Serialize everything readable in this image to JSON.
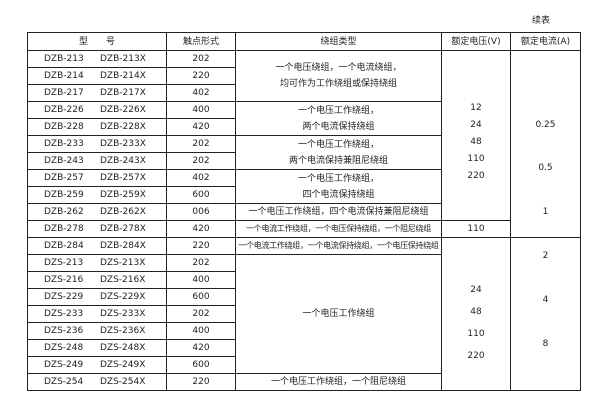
{
  "continued_label": "续表",
  "headers": [
    "型　　号",
    "触点形式",
    "绕组类型",
    "额定电压(V)",
    "额定电流(A)"
  ],
  "rows": [
    {
      "model": "DZB-213",
      "model_x": "DZB-213X",
      "contact": "202"
    },
    {
      "model": "DZB-214",
      "model_x": "DZB-214X",
      "contact": "220"
    },
    {
      "model": "DZB-217",
      "model_x": "DZB-217X",
      "contact": "402"
    },
    {
      "model": "DZB-226",
      "model_x": "DZB-226X",
      "contact": "400"
    },
    {
      "model": "DZB-228",
      "model_x": "DZB-228X",
      "contact": "420"
    },
    {
      "model": "DZB-233",
      "model_x": "DZB-233X",
      "contact": "202"
    },
    {
      "model": "DZB-243",
      "model_x": "DZB-243X",
      "contact": "202"
    },
    {
      "model": "DZB-257",
      "model_x": "DZB-257X",
      "contact": "402"
    },
    {
      "model": "DZB-259",
      "model_x": "DZB-259X",
      "contact": "600"
    },
    {
      "model": "DZB-262",
      "model_x": "DZB-262X",
      "contact": "006"
    },
    {
      "model": "DZB-278",
      "model_x": "DZB-278X",
      "contact": "420"
    },
    {
      "model": "DZB-284",
      "model_x": "DZB-284X",
      "contact": "220"
    },
    {
      "model": "DZS-213",
      "model_x": "DZS-213X",
      "contact": "202"
    },
    {
      "model": "DZS-216",
      "model_x": "DZS-216X",
      "contact": "400"
    },
    {
      "model": "DZS-229",
      "model_x": "DZS-229X",
      "contact": "600"
    },
    {
      "model": "DZS-233",
      "model_x": "DZS-233X",
      "contact": "202"
    },
    {
      "model": "DZS-236",
      "model_x": "DZS-236X",
      "contact": "400"
    },
    {
      "model": "DZS-248",
      "model_x": "DZS-248X",
      "contact": "420"
    },
    {
      "model": "DZS-249",
      "model_x": "DZS-249X",
      "contact": "600"
    },
    {
      "model": "DZS-254",
      "model_x": "DZS-254X",
      "contact": "220"
    }
  ],
  "winding": [
    [
      "一个电压绕组，一个电流绕组，",
      "均可作为工作绕组或保持绕组"
    ],
    [
      "一个电压工作绕组，",
      "两个电流保持绕组"
    ],
    [
      "一个电压工作绕组，",
      "两个电流保持兼阻尼绕组"
    ],
    [
      "一个电压工作绕组，",
      "四个电流保持绕组"
    ],
    [
      "一个电压工作绕组，四个电流保持兼阻尼绕组"
    ],
    [
      "一个电流工作绕组，一个电压保持绕组，一个阻尼绕组"
    ],
    [
      "一个电流工作绕组，一个电流保持绕组，一个电压保持绕组"
    ],
    [
      "一个电压工作绕组"
    ],
    [
      "一个电压工作绕组，一个阻尼绕组"
    ]
  ],
  "voltage": {
    "group1": [
      "12",
      "24",
      "48",
      "110",
      "220"
    ],
    "group2": [
      "110"
    ],
    "group3": [
      "24",
      "48",
      "110",
      "220"
    ]
  },
  "current": {
    "group1": [
      "0.25",
      "0.5",
      "1"
    ],
    "group2": [
      "2",
      "4",
      "8"
    ]
  }
}
